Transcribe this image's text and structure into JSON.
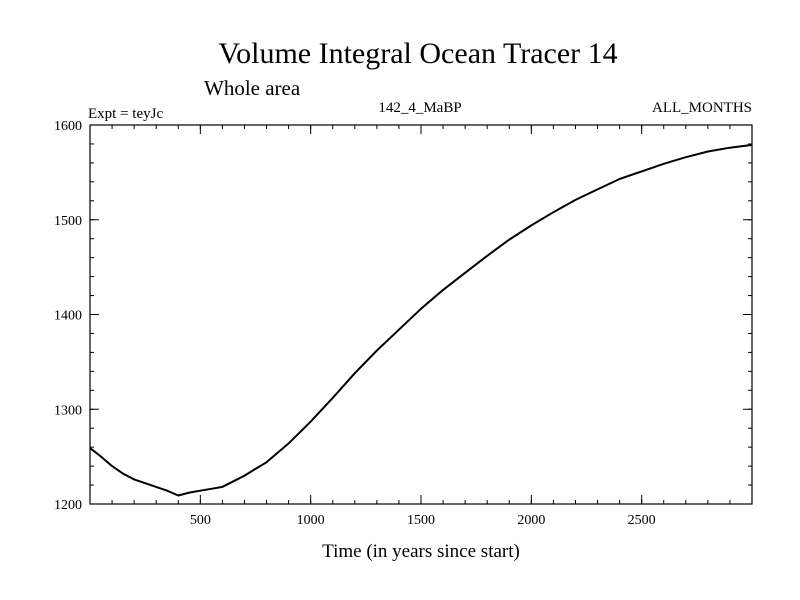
{
  "chart_data": {
    "type": "line",
    "title": "Volume Integral Ocean Tracer 14",
    "subtitle": "Whole area",
    "header_left": "Expt = teyJc",
    "header_center": "142_4_MaBP",
    "header_right": "ALL_MONTHS",
    "xlabel": "Time (in years since start)",
    "ylabel": "",
    "xlim": [
      0,
      3000
    ],
    "ylim": [
      1200,
      1600
    ],
    "x_ticks": [
      500,
      1000,
      1500,
      2000,
      2500
    ],
    "y_ticks": [
      1200,
      1300,
      1400,
      1500,
      1600
    ],
    "x_minor_step": 100,
    "y_minor_step": 20,
    "grid": false,
    "line_color": "#000000",
    "series": [
      {
        "name": "",
        "x": [
          0,
          50,
          100,
          150,
          200,
          250,
          300,
          350,
          400,
          450,
          500,
          550,
          600,
          650,
          700,
          750,
          800,
          900,
          1000,
          1100,
          1200,
          1300,
          1400,
          1500,
          1600,
          1700,
          1800,
          1900,
          2000,
          2100,
          2200,
          2300,
          2400,
          2500,
          2600,
          2700,
          2800,
          2900,
          3000
        ],
        "y": [
          1259,
          1250,
          1240,
          1232,
          1226,
          1222,
          1218,
          1214,
          1209,
          1212,
          1214,
          1216,
          1218,
          1224,
          1230,
          1237,
          1244,
          1264,
          1287,
          1312,
          1338,
          1362,
          1384,
          1406,
          1426,
          1444,
          1462,
          1479,
          1494,
          1508,
          1521,
          1532,
          1543,
          1551,
          1559,
          1566,
          1572,
          1576,
          1579
        ]
      }
    ]
  }
}
